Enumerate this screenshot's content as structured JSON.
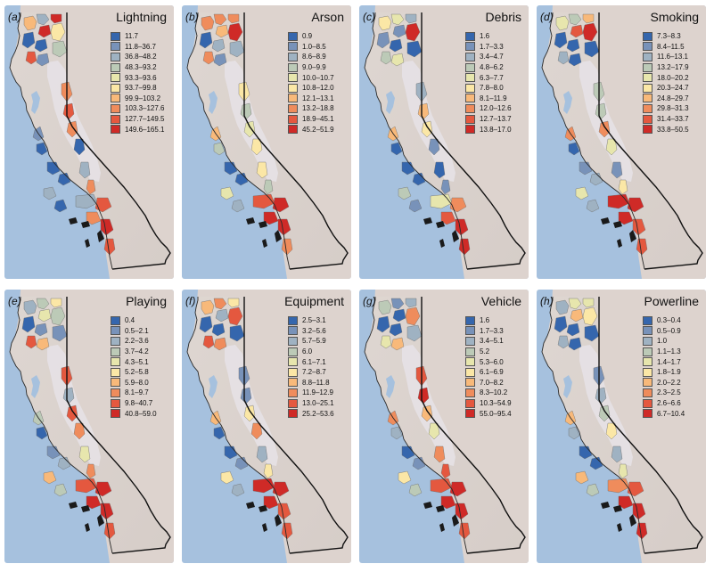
{
  "colors": {
    "ocean": "#a6c1de",
    "land": "#ddd3ce",
    "valley": "#e6e1e6",
    "border": "#111111",
    "scale": [
      "#3566ad",
      "#7892b9",
      "#9fb2c2",
      "#bccab7",
      "#e7e6ad",
      "#fbe7a6",
      "#f8b97a",
      "#ef8c5c",
      "#e4583f",
      "#cf2a27"
    ]
  },
  "panels": [
    {
      "letter": "(a)",
      "title": "Lightning",
      "legend": [
        "11.7",
        "11.8–36.7",
        "36.8–48.2",
        "48.3–93.2",
        "93.3–93.6",
        "93.7–99.8",
        "99.9–103.2",
        "103.3–127.6",
        "127.7–149.5",
        "149.6–165.1"
      ]
    },
    {
      "letter": "(b)",
      "title": "Arson",
      "legend": [
        "0.9",
        "1.0–8.5",
        "8.6–8.9",
        "9.0–9.9",
        "10.0–10.7",
        "10.8–12.0",
        "12.1–13.1",
        "13.2–18.8",
        "18.9–45.1",
        "45.2–51.9"
      ]
    },
    {
      "letter": "(c)",
      "title": "Debris",
      "legend": [
        "1.6",
        "1.7–3.3",
        "3.4–4.7",
        "4.8–6.2",
        "6.3–7.7",
        "7.8–8.0",
        "8.1–11.9",
        "12.0–12.6",
        "12.7–13.7",
        "13.8–17.0"
      ]
    },
    {
      "letter": "(d)",
      "title": "Smoking",
      "legend": [
        "7.3–8.3",
        "8.4–11.5",
        "11.6–13.1",
        "13.2–17.9",
        "18.0–20.2",
        "20.3–24.7",
        "24.8–29.7",
        "29.8–31.3",
        "31.4–33.7",
        "33.8–50.5"
      ]
    },
    {
      "letter": "(e)",
      "title": "Playing",
      "legend": [
        "0.4",
        "0.5–2.1",
        "2.2–3.6",
        "3.7–4.2",
        "4.3–5.1",
        "5.2–5.8",
        "5.9–8.0",
        "8.1–9.7",
        "9.8–40.7",
        "40.8–59.0"
      ]
    },
    {
      "letter": "(f)",
      "title": "Equipment",
      "legend": [
        "2.5–3.1",
        "3.2–5.6",
        "5.7–5.9",
        "6.0",
        "6.1–7.1",
        "7.2–8.7",
        "8.8–11.8",
        "11.9–12.9",
        "13.0–25.1",
        "25.2–53.6"
      ]
    },
    {
      "letter": "(g)",
      "title": "Vehicle",
      "legend": [
        "1.6",
        "1.7–3.3",
        "3.4–5.1",
        "5.2",
        "5.3–6.0",
        "6.1–6.9",
        "7.0–8.2",
        "8.3–10.2",
        "10.3–54.9",
        "55.0–95.4"
      ]
    },
    {
      "letter": "(h)",
      "title": "Powerline",
      "legend": [
        "0.3–0.4",
        "0.5–0.9",
        "1.0",
        "1.1–1.3",
        "1.4–1.7",
        "1.8–1.9",
        "2.0–2.2",
        "2.3–2.5",
        "2.6–6.6",
        "6.7–10.4"
      ]
    }
  ],
  "forest_classes": [
    [
      6,
      2,
      9,
      9,
      5,
      0,
      0,
      3,
      8,
      1,
      7,
      8,
      7,
      0,
      2,
      7,
      1,
      0,
      0,
      0,
      2,
      0,
      2,
      8,
      7,
      9,
      8
    ],
    [
      7,
      7,
      7,
      6,
      9,
      0,
      2,
      2,
      7,
      1,
      5,
      3,
      4,
      5,
      5,
      3,
      6,
      3,
      0,
      0,
      4,
      2,
      8,
      9,
      9,
      9,
      7
    ],
    [
      5,
      4,
      2,
      1,
      9,
      1,
      0,
      0,
      3,
      4,
      2,
      6,
      5,
      1,
      0,
      1,
      6,
      0,
      0,
      0,
      3,
      1,
      4,
      7,
      8,
      9,
      9
    ],
    [
      4,
      3,
      6,
      8,
      9,
      0,
      0,
      0,
      2,
      0,
      3,
      3,
      7,
      4,
      1,
      5,
      7,
      0,
      1,
      2,
      4,
      2,
      9,
      9,
      9,
      8,
      8
    ],
    [
      2,
      3,
      5,
      4,
      3,
      0,
      1,
      1,
      8,
      6,
      8,
      2,
      8,
      7,
      4,
      7,
      3,
      0,
      1,
      2,
      6,
      3,
      8,
      9,
      9,
      9,
      8
    ],
    [
      6,
      7,
      5,
      2,
      8,
      0,
      0,
      0,
      8,
      7,
      1,
      1,
      5,
      7,
      2,
      5,
      6,
      0,
      0,
      1,
      5,
      2,
      9,
      9,
      9,
      8,
      8
    ],
    [
      3,
      1,
      2,
      0,
      7,
      0,
      0,
      2,
      4,
      6,
      8,
      9,
      6,
      4,
      7,
      8,
      7,
      2,
      0,
      1,
      5,
      3,
      8,
      9,
      9,
      9,
      8
    ],
    [
      2,
      4,
      4,
      6,
      5,
      0,
      0,
      0,
      2,
      0,
      1,
      2,
      3,
      5,
      2,
      4,
      6,
      2,
      0,
      0,
      6,
      3,
      7,
      8,
      9,
      9,
      9
    ]
  ]
}
